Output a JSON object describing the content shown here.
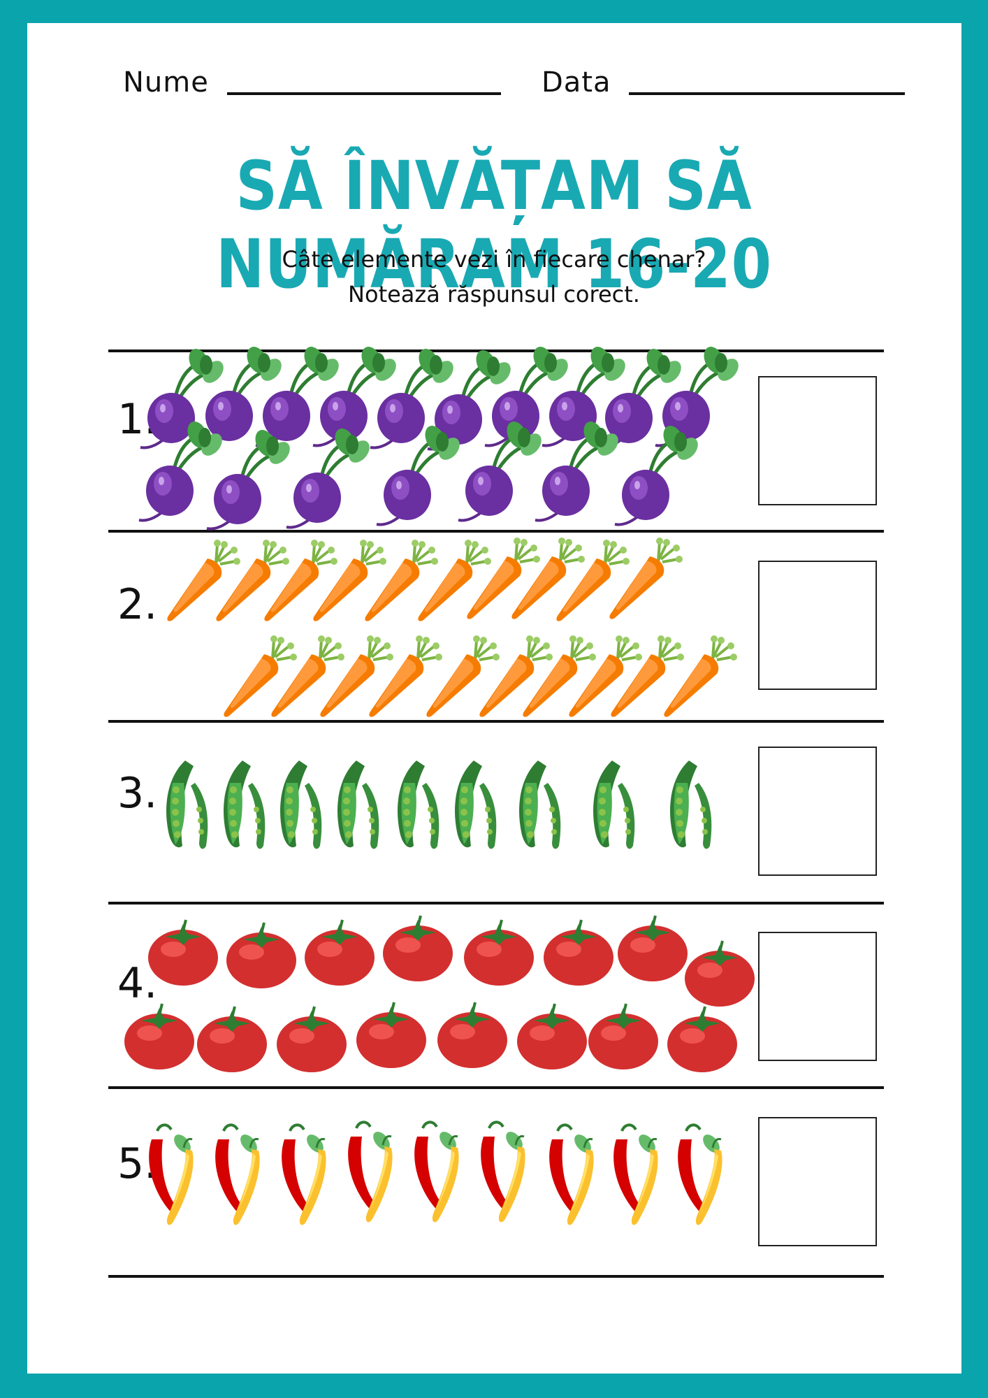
{
  "header": {
    "name_label": "Nume",
    "date_label": "Data"
  },
  "title": "SĂ ÎNVĂȚAM SĂ NUMĂRAM 16-20",
  "instructions": {
    "line1": "Câte elemente vezi în fiecare chenar?",
    "line2": "Notează răspunsul corect."
  },
  "colors": {
    "frame": "#0aa4ad",
    "title": "#19a9b3"
  },
  "exercises": [
    {
      "label": "1.",
      "item": "beet-icon",
      "count": 17
    },
    {
      "label": "2.",
      "item": "carrot-icon",
      "count": 20
    },
    {
      "label": "3.",
      "item": "pea-pod-icon",
      "count": 19
    },
    {
      "label": "4.",
      "item": "tomato-icon",
      "count": 16
    },
    {
      "label": "5.",
      "item": "pepper-icon",
      "count": 18
    }
  ]
}
